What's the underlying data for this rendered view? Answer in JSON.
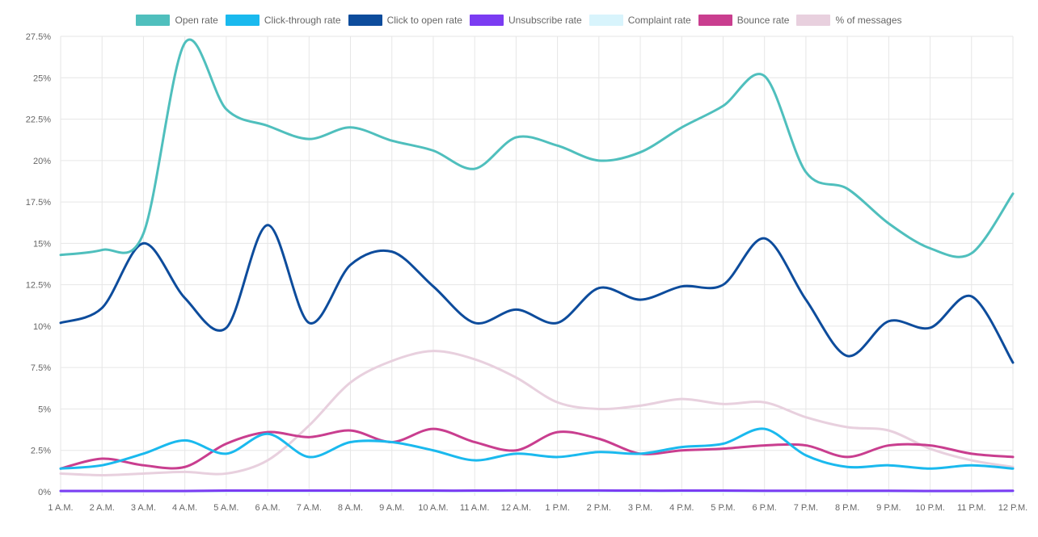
{
  "chart_data": {
    "type": "line",
    "title": "",
    "xlabel": "",
    "ylabel": "",
    "categories": [
      "1 A.M.",
      "2 A.M.",
      "3 A.M.",
      "4 A.M.",
      "5 A.M.",
      "6 A.M.",
      "7 A.M.",
      "8 A.M.",
      "9 A.M.",
      "10 A.M.",
      "11 A.M.",
      "12 A.M.",
      "1 P.M.",
      "2 P.M.",
      "3 P.M.",
      "4 P.M.",
      "5 P.M.",
      "6 P.M.",
      "7 P.M.",
      "8 P.M.",
      "9 P.M.",
      "10 P.M.",
      "11 P.M.",
      "12 P.M."
    ],
    "ylim": [
      0,
      27.5
    ],
    "yticks": [
      0,
      2.5,
      5,
      7.5,
      10,
      12.5,
      15,
      17.5,
      20,
      22.5,
      25,
      27.5
    ],
    "ytick_labels": [
      "0%",
      "2.5%",
      "5%",
      "7.5%",
      "10%",
      "12.5%",
      "15%",
      "17.5%",
      "20%",
      "22.5%",
      "25%",
      "27.5%"
    ],
    "grid": true,
    "legend_position": "top-center",
    "series": [
      {
        "name": "Open rate",
        "color": "#4fbfbd",
        "values": [
          14.3,
          14.6,
          15.6,
          27.1,
          23.1,
          22.1,
          21.3,
          22.0,
          21.2,
          20.6,
          19.5,
          21.4,
          20.9,
          20.0,
          20.5,
          22.0,
          23.3,
          25.1,
          19.3,
          18.3,
          16.2,
          14.7,
          14.4,
          18.0
        ]
      },
      {
        "name": "Click-through rate",
        "color": "#1ab9ee",
        "values": [
          1.4,
          1.6,
          2.3,
          3.1,
          2.3,
          3.5,
          2.1,
          3.0,
          3.0,
          2.5,
          1.9,
          2.3,
          2.1,
          2.4,
          2.3,
          2.7,
          2.9,
          3.8,
          2.2,
          1.5,
          1.6,
          1.4,
          1.6,
          1.4
        ]
      },
      {
        "name": "Click to open rate",
        "color": "#0d4c9c",
        "values": [
          10.2,
          11.1,
          15.0,
          11.7,
          9.9,
          16.1,
          10.2,
          13.7,
          14.5,
          12.4,
          10.2,
          11.0,
          10.2,
          12.3,
          11.6,
          12.4,
          12.5,
          15.3,
          11.6,
          8.2,
          10.3,
          9.9,
          11.8,
          7.8
        ]
      },
      {
        "name": "Unsubscribe rate",
        "color": "#7b3cf2",
        "values": [
          0.05,
          0.05,
          0.05,
          0.05,
          0.07,
          0.07,
          0.07,
          0.07,
          0.07,
          0.07,
          0.07,
          0.08,
          0.08,
          0.08,
          0.07,
          0.07,
          0.07,
          0.06,
          0.06,
          0.06,
          0.06,
          0.05,
          0.05,
          0.06
        ]
      },
      {
        "name": "Complaint rate",
        "color": "#d8f4fc",
        "values": [
          0.01,
          0.01,
          0.01,
          0.01,
          0.01,
          0.01,
          0.01,
          0.01,
          0.01,
          0.01,
          0.01,
          0.01,
          0.01,
          0.01,
          0.01,
          0.01,
          0.01,
          0.01,
          0.01,
          0.01,
          0.01,
          0.01,
          0.01,
          0.01
        ]
      },
      {
        "name": "Bounce rate",
        "color": "#c93e8f",
        "values": [
          1.4,
          2.0,
          1.6,
          1.5,
          2.9,
          3.6,
          3.3,
          3.7,
          3.0,
          3.8,
          3.0,
          2.5,
          3.6,
          3.2,
          2.3,
          2.5,
          2.6,
          2.8,
          2.8,
          2.1,
          2.8,
          2.8,
          2.3,
          2.1
        ]
      },
      {
        "name": "% of messages",
        "color": "#e8d0de",
        "values": [
          1.1,
          1.0,
          1.1,
          1.2,
          1.1,
          1.9,
          4.0,
          6.6,
          7.9,
          8.5,
          8.0,
          6.9,
          5.4,
          5.0,
          5.2,
          5.6,
          5.3,
          5.4,
          4.5,
          3.9,
          3.7,
          2.6,
          1.9,
          1.5
        ]
      }
    ]
  }
}
